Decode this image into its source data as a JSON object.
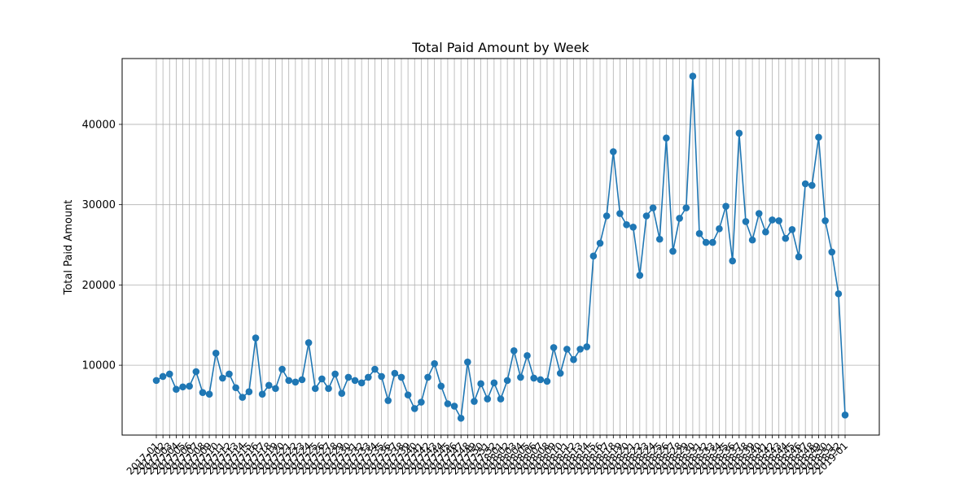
{
  "chart_data": {
    "type": "line",
    "title": "Total Paid Amount by Week",
    "xlabel": "",
    "ylabel": "Total Paid Amount",
    "grid": true,
    "marker": "circle",
    "color": "#1f77b4",
    "ylim": [
      1300,
      48200
    ],
    "yticks": [
      10000,
      20000,
      30000,
      40000
    ],
    "ytick_labels": [
      "10000",
      "20000",
      "30000",
      "40000"
    ],
    "x": [
      "2017-01",
      "2017-02",
      "2017-03",
      "2017-04",
      "2017-05",
      "2017-06",
      "2017-07",
      "2017-08",
      "2017-09",
      "2017-10",
      "2017-11",
      "2017-12",
      "2017-13",
      "2017-14",
      "2017-15",
      "2017-16",
      "2017-17",
      "2017-18",
      "2017-19",
      "2017-20",
      "2017-21",
      "2017-22",
      "2017-23",
      "2017-24",
      "2017-25",
      "2017-26",
      "2017-27",
      "2017-28",
      "2017-29",
      "2017-30",
      "2017-31",
      "2017-32",
      "2017-33",
      "2017-34",
      "2017-35",
      "2017-36",
      "2017-37",
      "2017-38",
      "2017-39",
      "2017-40",
      "2017-41",
      "2017-42",
      "2017-43",
      "2017-44",
      "2017-45",
      "2017-46",
      "2017-47",
      "2017-48",
      "2017-49",
      "2017-50",
      "2017-51",
      "2017-52",
      "2018-01",
      "2018-02",
      "2018-03",
      "2018-04",
      "2018-05",
      "2018-06",
      "2018-07",
      "2018-08",
      "2018-09",
      "2018-10",
      "2018-11",
      "2018-12",
      "2018-13",
      "2018-14",
      "2018-15",
      "2018-16",
      "2018-17",
      "2018-18",
      "2018-19",
      "2018-20",
      "2018-21",
      "2018-22",
      "2018-23",
      "2018-24",
      "2018-25",
      "2018-26",
      "2018-27",
      "2018-28",
      "2018-29",
      "2018-30",
      "2018-31",
      "2018-32",
      "2018-33",
      "2018-34",
      "2018-35",
      "2018-36",
      "2018-37",
      "2018-38",
      "2018-39",
      "2018-40",
      "2018-41",
      "2018-42",
      "2018-43",
      "2018-44",
      "2018-45",
      "2018-46",
      "2018-47",
      "2018-48",
      "2018-49",
      "2018-50",
      "2018-51",
      "2018-52",
      "2019-01"
    ],
    "series": [
      {
        "values": [
          8100,
          8600,
          8900,
          7000,
          7300,
          7400,
          9200,
          6600,
          6400,
          11500,
          8400,
          8900,
          7200,
          6000,
          6700,
          13400,
          6400,
          7500,
          7100,
          9500,
          8100,
          7900,
          8200,
          12800,
          7100,
          8300,
          7100,
          8900,
          6500,
          8500,
          8100,
          7800,
          8500,
          9500,
          8600,
          5600,
          9000,
          8500,
          6300,
          4600,
          5400,
          8500,
          10200,
          7400,
          5200,
          4900,
          3400,
          10400,
          5500,
          7700,
          5800,
          7800,
          5800,
          8100,
          11800,
          8500,
          11200,
          8400,
          8200,
          8000,
          12200,
          9000,
          12000,
          10700,
          12000,
          12300,
          23600,
          25200,
          28600,
          36600,
          28900,
          27500,
          27200,
          21200,
          28600,
          29600,
          25700,
          38300,
          24200,
          28300,
          29600,
          46000,
          26400,
          25300,
          25300,
          27000,
          29800,
          23000,
          38900,
          27900,
          25600,
          28900,
          26600,
          28100,
          28000,
          25800,
          26900,
          23500,
          32600,
          32400,
          38400,
          28000,
          24100,
          18900,
          3800
        ]
      }
    ]
  }
}
